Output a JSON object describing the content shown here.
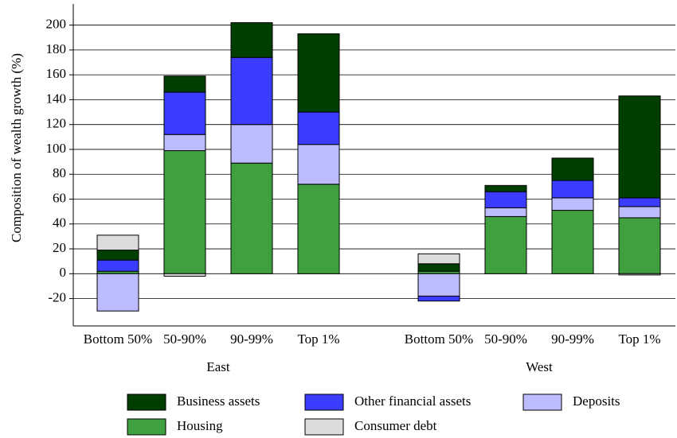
{
  "chart_data": {
    "type": "stacked-bar",
    "y_label": "Composition of wealth growth (%)",
    "group_labels": [
      "East",
      "West"
    ],
    "categories": [
      "Bottom 50%",
      "50-90%",
      "90-99%",
      "Top 1%",
      "Bottom 50%",
      "50-90%",
      "90-99%",
      "Top 1%"
    ],
    "series": [
      {
        "name": "Housing",
        "color": "#40a040",
        "values": [
          2,
          99,
          89,
          72,
          2,
          46,
          51,
          45
        ]
      },
      {
        "name": "Deposits",
        "color": "#bcbcff",
        "values": [
          -30,
          13,
          31,
          32,
          -18,
          7,
          10,
          9
        ]
      },
      {
        "name": "Other financial assets",
        "color": "#3c3cff",
        "values": [
          9,
          34,
          54,
          26,
          -4,
          13,
          14,
          7
        ]
      },
      {
        "name": "Business assets",
        "color": "#003f00",
        "values": [
          8,
          13,
          28,
          63,
          6,
          5,
          18,
          82
        ]
      },
      {
        "name": "Consumer debt",
        "color": "#dcdcdc",
        "values": [
          12,
          -2,
          0,
          0,
          8,
          0,
          0,
          -1
        ]
      }
    ],
    "ylim": [
      -42,
      217
    ],
    "yticks": [
      -20,
      0,
      20,
      40,
      60,
      80,
      100,
      120,
      140,
      160,
      180,
      200
    ],
    "grid": true
  }
}
